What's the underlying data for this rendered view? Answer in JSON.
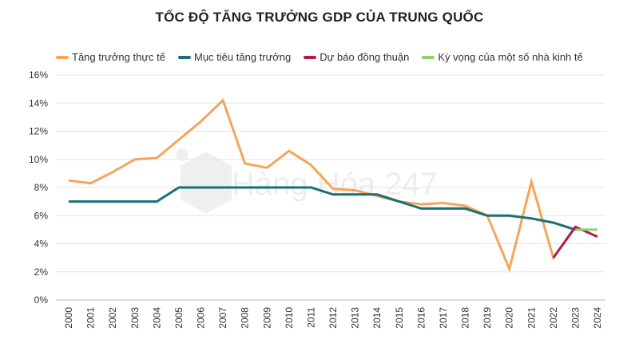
{
  "title": "TỐC ĐỘ TĂNG TRƯỞNG GDP CỦA TRUNG QUỐC",
  "watermark": "Hàng Hóa 247",
  "chart_data": {
    "type": "line",
    "title": "TỐC ĐỘ TĂNG TRƯỞNG GDP CỦA TRUNG QUỐC",
    "xlabel": "",
    "ylabel": "",
    "categories": [
      "2000",
      "2001",
      "2002",
      "2003",
      "2004",
      "2005",
      "2006",
      "2007",
      "2008",
      "2009",
      "2010",
      "2011",
      "2012",
      "2013",
      "2014",
      "2015",
      "2016",
      "2017",
      "2018",
      "2019",
      "2020",
      "2021",
      "2022",
      "2023",
      "2024"
    ],
    "y_ticks": [
      "0%",
      "2%",
      "4%",
      "6%",
      "8%",
      "10%",
      "12%",
      "14%",
      "16%"
    ],
    "ylim": [
      0,
      16
    ],
    "legend_position": "top",
    "series": [
      {
        "name": "Tăng trưởng thực tế",
        "color": "#F5A55A",
        "values": [
          8.5,
          8.3,
          9.1,
          10.0,
          10.1,
          11.4,
          12.7,
          14.2,
          9.7,
          9.4,
          10.6,
          9.6,
          7.9,
          7.8,
          7.4,
          7.0,
          6.8,
          6.9,
          6.7,
          6.0,
          2.2,
          8.4,
          3.0,
          5.2,
          null
        ]
      },
      {
        "name": "Mục tiêu tăng trưởng",
        "color": "#1B6E73",
        "values": [
          7,
          7,
          7,
          7,
          7,
          8,
          8,
          8,
          8,
          8,
          8,
          8,
          7.5,
          7.5,
          7.5,
          7.0,
          6.5,
          6.5,
          6.5,
          6.0,
          6.0,
          5.8,
          5.5,
          5.0,
          null
        ]
      },
      {
        "name": "Dự báo đồng thuận",
        "color": "#B01E4A",
        "values": [
          null,
          null,
          null,
          null,
          null,
          null,
          null,
          null,
          null,
          null,
          null,
          null,
          null,
          null,
          null,
          null,
          null,
          null,
          null,
          null,
          null,
          null,
          3.0,
          5.2,
          4.5
        ]
      },
      {
        "name": "Kỳ vọng của một số nhà kinh tế",
        "color": "#8FD16A",
        "values": [
          null,
          null,
          null,
          null,
          null,
          null,
          null,
          null,
          null,
          null,
          null,
          null,
          null,
          null,
          null,
          null,
          null,
          null,
          null,
          null,
          null,
          null,
          null,
          5.0,
          5.0
        ]
      }
    ]
  }
}
